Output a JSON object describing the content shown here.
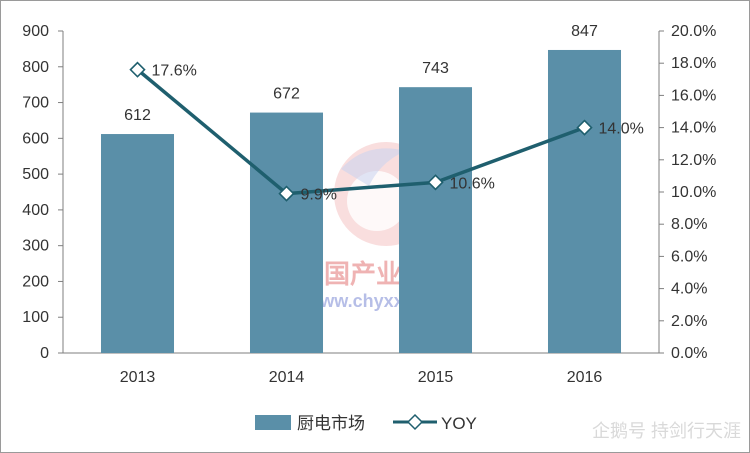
{
  "chart_data": {
    "type": "bar",
    "categories": [
      "2013",
      "2014",
      "2015",
      "2016"
    ],
    "series": [
      {
        "name": "厨电市场",
        "type": "bar",
        "axis": "left",
        "values": [
          612,
          672,
          743,
          847
        ]
      },
      {
        "name": "YOY",
        "type": "line",
        "axis": "right",
        "values": [
          17.6,
          9.9,
          10.6,
          14.0
        ]
      }
    ],
    "data_labels": {
      "bars": [
        "612",
        "672",
        "743",
        "847"
      ],
      "line": [
        "17.6%",
        "9.9%",
        "10.6%",
        "14.0%"
      ]
    },
    "y_left": {
      "min": 0,
      "max": 900,
      "ticks": [
        "0",
        "100",
        "200",
        "300",
        "400",
        "500",
        "600",
        "700",
        "800",
        "900"
      ]
    },
    "y_right": {
      "min": 0,
      "max": 20,
      "ticks": [
        "0.0%",
        "2.0%",
        "4.0%",
        "6.0%",
        "8.0%",
        "10.0%",
        "12.0%",
        "14.0%",
        "16.0%",
        "18.0%",
        "20.0%"
      ]
    },
    "grid": false,
    "legend_position": "bottom"
  },
  "watermark": {
    "text_cn": "中国产业信息",
    "url": "www.chyxx.com"
  },
  "corner_watermark": {
    "text": "企鹅号 持剑行天涯"
  },
  "colors": {
    "bar": "#5a8fa8",
    "line": "#1f5f6e",
    "axis": "#7f7f7f",
    "text": "#333333"
  }
}
